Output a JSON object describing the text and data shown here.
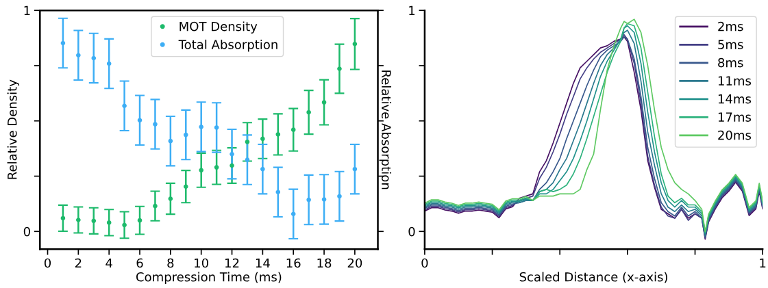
{
  "chart_data": [
    {
      "type": "scatter",
      "xlabel": "Compression Time (ms)",
      "ylabel": "Relative Density",
      "marker": "circle",
      "legend": "top",
      "grid": false,
      "x": [
        1,
        2,
        3,
        4,
        5,
        6,
        7,
        8,
        9,
        10,
        11,
        12,
        13,
        14,
        15,
        16,
        17,
        18,
        19,
        20
      ],
      "xlim": [
        -0.5,
        21.5
      ],
      "xticks": [
        0,
        2,
        4,
        6,
        8,
        10,
        12,
        14,
        16,
        18,
        20
      ],
      "ylim": [
        -0.08,
        1
      ],
      "yticks": [
        0,
        {
          "value": 0.25,
          "label": null
        },
        {
          "value": 0.5,
          "label": null
        },
        {
          "value": 0.75,
          "label": null
        },
        1
      ],
      "tick_labels": "xy",
      "series": [
        {
          "name": "MOT Density",
          "color": "#1dba6b",
          "values": [
            0.06,
            0.052,
            0.048,
            0.04,
            0.029,
            0.05,
            0.115,
            0.148,
            0.203,
            0.277,
            0.29,
            0.298,
            0.405,
            0.419,
            0.439,
            0.46,
            0.539,
            0.584,
            0.736,
            0.848
          ],
          "errors": [
            0.059,
            0.059,
            0.059,
            0.059,
            0.06,
            0.063,
            0.067,
            0.07,
            0.073,
            0.077,
            0.077,
            0.08,
            0.087,
            0.089,
            0.093,
            0.096,
            0.099,
            0.102,
            0.111,
            0.115
          ]
        },
        {
          "name": "Total Absorption",
          "color": "#3daef5",
          "values": [
            0.852,
            0.797,
            0.784,
            0.759,
            0.568,
            0.503,
            0.485,
            0.409,
            0.437,
            0.473,
            0.47,
            0.35,
            0.324,
            0.282,
            0.178,
            0.079,
            0.143,
            0.145,
            0.159,
            0.282
          ],
          "errors": [
            0.112,
            0.112,
            0.112,
            0.112,
            0.112,
            0.112,
            0.112,
            0.112,
            0.112,
            0.112,
            0.112,
            0.112,
            0.112,
            0.112,
            0.112,
            0.112,
            0.112,
            0.112,
            0.112,
            0.112
          ]
        }
      ]
    },
    {
      "type": "line",
      "xlabel": "Scaled Distance (x-axis)",
      "ylabel": "Relative Absorption",
      "legend": "top right",
      "grid": false,
      "line_style": "solid",
      "x": [
        0,
        0.02,
        0.04,
        0.06,
        0.08,
        0.1,
        0.12,
        0.14,
        0.16,
        0.18,
        0.2,
        0.22,
        0.24,
        0.26,
        0.28,
        0.3,
        0.32,
        0.34,
        0.36,
        0.38,
        0.4,
        0.42,
        0.44,
        0.46,
        0.48,
        0.5,
        0.52,
        0.54,
        0.56,
        0.58,
        0.59,
        0.6,
        0.62,
        0.64,
        0.66,
        0.68,
        0.7,
        0.72,
        0.74,
        0.76,
        0.78,
        0.8,
        0.82,
        0.83,
        0.84,
        0.86,
        0.88,
        0.9,
        0.92,
        0.94,
        0.96,
        0.98,
        0.99,
        1
      ],
      "xlim": [
        0,
        1
      ],
      "xticks": [
        0,
        {
          "value": 0.2,
          "label": null
        },
        {
          "value": 0.4,
          "label": null
        },
        {
          "value": 0.6,
          "label": null
        },
        {
          "value": 0.8,
          "label": null
        },
        1
      ],
      "ylim": [
        -0.08,
        1
      ],
      "yticks": [
        0,
        {
          "value": 0.25,
          "label": null
        },
        {
          "value": 0.5,
          "label": null
        },
        {
          "value": 0.75,
          "label": null
        },
        1
      ],
      "series": [
        {
          "name": "2ms",
          "color": "#471164",
          "values": [
            0.092,
            0.107,
            0.107,
            0.097,
            0.092,
            0.082,
            0.092,
            0.092,
            0.097,
            0.092,
            0.087,
            0.062,
            0.102,
            0.112,
            0.15,
            0.16,
            0.17,
            0.27,
            0.32,
            0.4,
            0.49,
            0.58,
            0.67,
            0.74,
            0.77,
            0.8,
            0.83,
            0.84,
            0.86,
            0.87,
            0.88,
            0.86,
            0.72,
            0.55,
            0.32,
            0.2,
            0.1,
            0.08,
            0.06,
            0.1,
            0.06,
            0.08,
            0.06,
            -0.035,
            0.042,
            0.102,
            0.152,
            0.182,
            0.222,
            0.182,
            0.072,
            0.102,
            0.182,
            0.102
          ]
        },
        {
          "name": "5ms",
          "color": "#433e85",
          "values": [
            0.098,
            0.113,
            0.113,
            0.103,
            0.098,
            0.088,
            0.098,
            0.098,
            0.103,
            0.098,
            0.093,
            0.068,
            0.108,
            0.118,
            0.14,
            0.15,
            0.16,
            0.24,
            0.29,
            0.36,
            0.44,
            0.53,
            0.61,
            0.69,
            0.74,
            0.78,
            0.81,
            0.83,
            0.85,
            0.87,
            0.89,
            0.87,
            0.76,
            0.58,
            0.34,
            0.21,
            0.11,
            0.07,
            0.06,
            0.1,
            0.05,
            0.08,
            0.06,
            -0.03,
            0.048,
            0.108,
            0.158,
            0.188,
            0.228,
            0.188,
            0.078,
            0.108,
            0.188,
            0.108
          ]
        },
        {
          "name": "8ms",
          "color": "#38588c",
          "values": [
            0.104,
            0.119,
            0.119,
            0.109,
            0.104,
            0.094,
            0.104,
            0.104,
            0.109,
            0.104,
            0.099,
            0.074,
            0.114,
            0.124,
            0.13,
            0.14,
            0.14,
            0.19,
            0.22,
            0.27,
            0.33,
            0.42,
            0.5,
            0.58,
            0.66,
            0.73,
            0.79,
            0.82,
            0.84,
            0.86,
            0.88,
            0.87,
            0.78,
            0.61,
            0.38,
            0.24,
            0.13,
            0.09,
            0.07,
            0.11,
            0.07,
            0.09,
            0.06,
            -0.025,
            0.054,
            0.114,
            0.164,
            0.194,
            0.234,
            0.194,
            0.084,
            0.114,
            0.194,
            0.114
          ]
        },
        {
          "name": "11ms",
          "color": "#2a788e",
          "values": [
            0.11,
            0.125,
            0.125,
            0.115,
            0.11,
            0.1,
            0.11,
            0.11,
            0.115,
            0.11,
            0.105,
            0.08,
            0.12,
            0.13,
            0.13,
            0.14,
            0.14,
            0.18,
            0.19,
            0.22,
            0.28,
            0.33,
            0.41,
            0.49,
            0.58,
            0.67,
            0.75,
            0.8,
            0.83,
            0.87,
            0.9,
            0.91,
            0.85,
            0.68,
            0.45,
            0.3,
            0.17,
            0.11,
            0.09,
            0.12,
            0.09,
            0.1,
            0.07,
            -0.02,
            0.06,
            0.12,
            0.17,
            0.2,
            0.24,
            0.2,
            0.09,
            0.12,
            0.2,
            0.12
          ]
        },
        {
          "name": "14ms",
          "color": "#21918c",
          "values": [
            0.116,
            0.131,
            0.131,
            0.121,
            0.116,
            0.106,
            0.116,
            0.116,
            0.121,
            0.116,
            0.111,
            0.086,
            0.126,
            0.136,
            0.136,
            0.146,
            0.14,
            0.17,
            0.17,
            0.19,
            0.23,
            0.27,
            0.33,
            0.41,
            0.5,
            0.6,
            0.7,
            0.77,
            0.82,
            0.87,
            0.92,
            0.93,
            0.9,
            0.76,
            0.54,
            0.36,
            0.22,
            0.14,
            0.11,
            0.14,
            0.11,
            0.11,
            0.08,
            -0.01,
            0.066,
            0.126,
            0.176,
            0.206,
            0.246,
            0.206,
            0.096,
            0.126,
            0.206,
            0.126
          ]
        },
        {
          "name": "17ms",
          "color": "#2db27d",
          "values": [
            0.122,
            0.137,
            0.137,
            0.127,
            0.122,
            0.112,
            0.122,
            0.122,
            0.127,
            0.122,
            0.117,
            0.092,
            0.132,
            0.142,
            0.142,
            0.152,
            0.14,
            0.18,
            0.19,
            0.18,
            0.19,
            0.21,
            0.26,
            0.33,
            0.42,
            0.52,
            0.62,
            0.72,
            0.8,
            0.86,
            0.92,
            0.94,
            0.93,
            0.83,
            0.63,
            0.43,
            0.26,
            0.16,
            0.13,
            0.15,
            0.12,
            0.12,
            0.09,
            -0.005,
            0.072,
            0.132,
            0.182,
            0.212,
            0.252,
            0.212,
            0.102,
            0.132,
            0.212,
            0.132
          ]
        },
        {
          "name": "20ms",
          "color": "#5ec962",
          "values": [
            0.128,
            0.143,
            0.143,
            0.133,
            0.128,
            0.118,
            0.128,
            0.128,
            0.133,
            0.128,
            0.123,
            0.098,
            0.138,
            0.148,
            0.148,
            0.158,
            0.14,
            0.16,
            0.16,
            0.16,
            0.17,
            0.17,
            0.17,
            0.19,
            0.28,
            0.35,
            0.55,
            0.73,
            0.84,
            0.92,
            0.95,
            0.94,
            0.96,
            0.9,
            0.75,
            0.55,
            0.38,
            0.28,
            0.22,
            0.19,
            0.17,
            0.14,
            0.1,
            0.0,
            0.078,
            0.138,
            0.188,
            0.218,
            0.258,
            0.218,
            0.108,
            0.138,
            0.218,
            0.138
          ]
        }
      ]
    }
  ]
}
